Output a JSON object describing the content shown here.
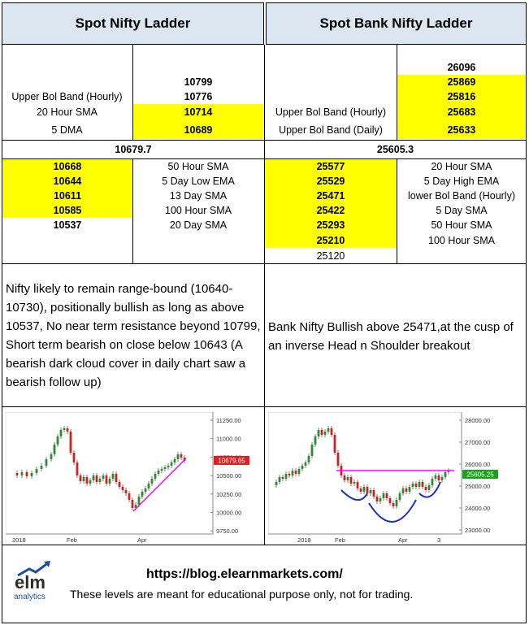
{
  "headers": {
    "left": "Spot Nifty Ladder",
    "right": "Spot Bank Nifty Ladder"
  },
  "nifty": {
    "upper": [
      {
        "label": "",
        "value": ""
      },
      {
        "label": "",
        "value": "10799"
      },
      {
        "label": "Upper Bol Band (Hourly)",
        "value": "10776"
      },
      {
        "label": "20 Hour SMA",
        "value": "10714"
      },
      {
        "label": "5 DMA",
        "value": "10689"
      }
    ],
    "spot": "10679.7",
    "lower": [
      {
        "value": "10668",
        "label": "50 Hour SMA"
      },
      {
        "value": "10644",
        "label": "5 Day Low EMA"
      },
      {
        "value": "10611",
        "label": "13 Day SMA"
      },
      {
        "value": "10585",
        "label": "100 Hour SMA"
      },
      {
        "value": "10537",
        "label": "20 Day SMA"
      }
    ],
    "commentary": "Nifty likely to remain range-bound (10640-10730), positionally bullish as long as above 10537, No near term resistance beyond 10799, Short term bearish on close below 10643 (A bearish dark cloud cover in daily chart saw a bearish follow up)"
  },
  "banknifty": {
    "upper": [
      {
        "label": "",
        "value": "26096"
      },
      {
        "label": "",
        "value": "25869"
      },
      {
        "label": "",
        "value": "25816"
      },
      {
        "label": "Upper Bol Band (Hourly)",
        "value": "25683"
      },
      {
        "label": "Upper Bol Band (Daily)",
        "value": "25633"
      }
    ],
    "spot": "25605.3",
    "lower": [
      {
        "value": "25577",
        "label": "20 Hour SMA"
      },
      {
        "value": "25529",
        "label": "5 Day High EMA"
      },
      {
        "value": "25471",
        "label": "lower Bol Band (Hourly)"
      },
      {
        "value": "25422",
        "label": "5 Day  SMA"
      },
      {
        "value": "25293",
        "label": "50 Hour SMA"
      },
      {
        "value": "25210",
        "label": "100 Hour SMA"
      },
      {
        "value": "25120",
        "label": ""
      }
    ],
    "commentary": "Bank Nifty Bullish above 25471,at the cusp of an inverse Head n Shoulder breakout"
  },
  "chart_nifty": {
    "price_tag": "10679.65",
    "y_ticks": [
      "11250.00",
      "11000.00",
      "10750.00",
      "10500.00",
      "10250.00",
      "10000.00",
      "9750.00"
    ],
    "x_ticks": [
      "2018",
      "Feb",
      "Apr"
    ]
  },
  "chart_banknifty": {
    "price_tag": "25605.25",
    "y_ticks": [
      "28000.00",
      "27000.00",
      "26000.00",
      "25000.00",
      "24000.00",
      "23000.00"
    ],
    "x_ticks": [
      "2018",
      "Feb",
      "Apr",
      "3"
    ]
  },
  "footer": {
    "logo_text": "elm",
    "logo_sub": "analytics",
    "url": "https://blog.elearnmarkets.com/",
    "disclaimer": "These levels are meant for educational purpose only, not for trading."
  },
  "colors": {
    "header_bg": "#dce6f1",
    "highlight": "#ffff00",
    "trend_line": "#ff00ff",
    "price_tag_bg": "#e02020",
    "green_price_tag": "#1aa01a"
  }
}
